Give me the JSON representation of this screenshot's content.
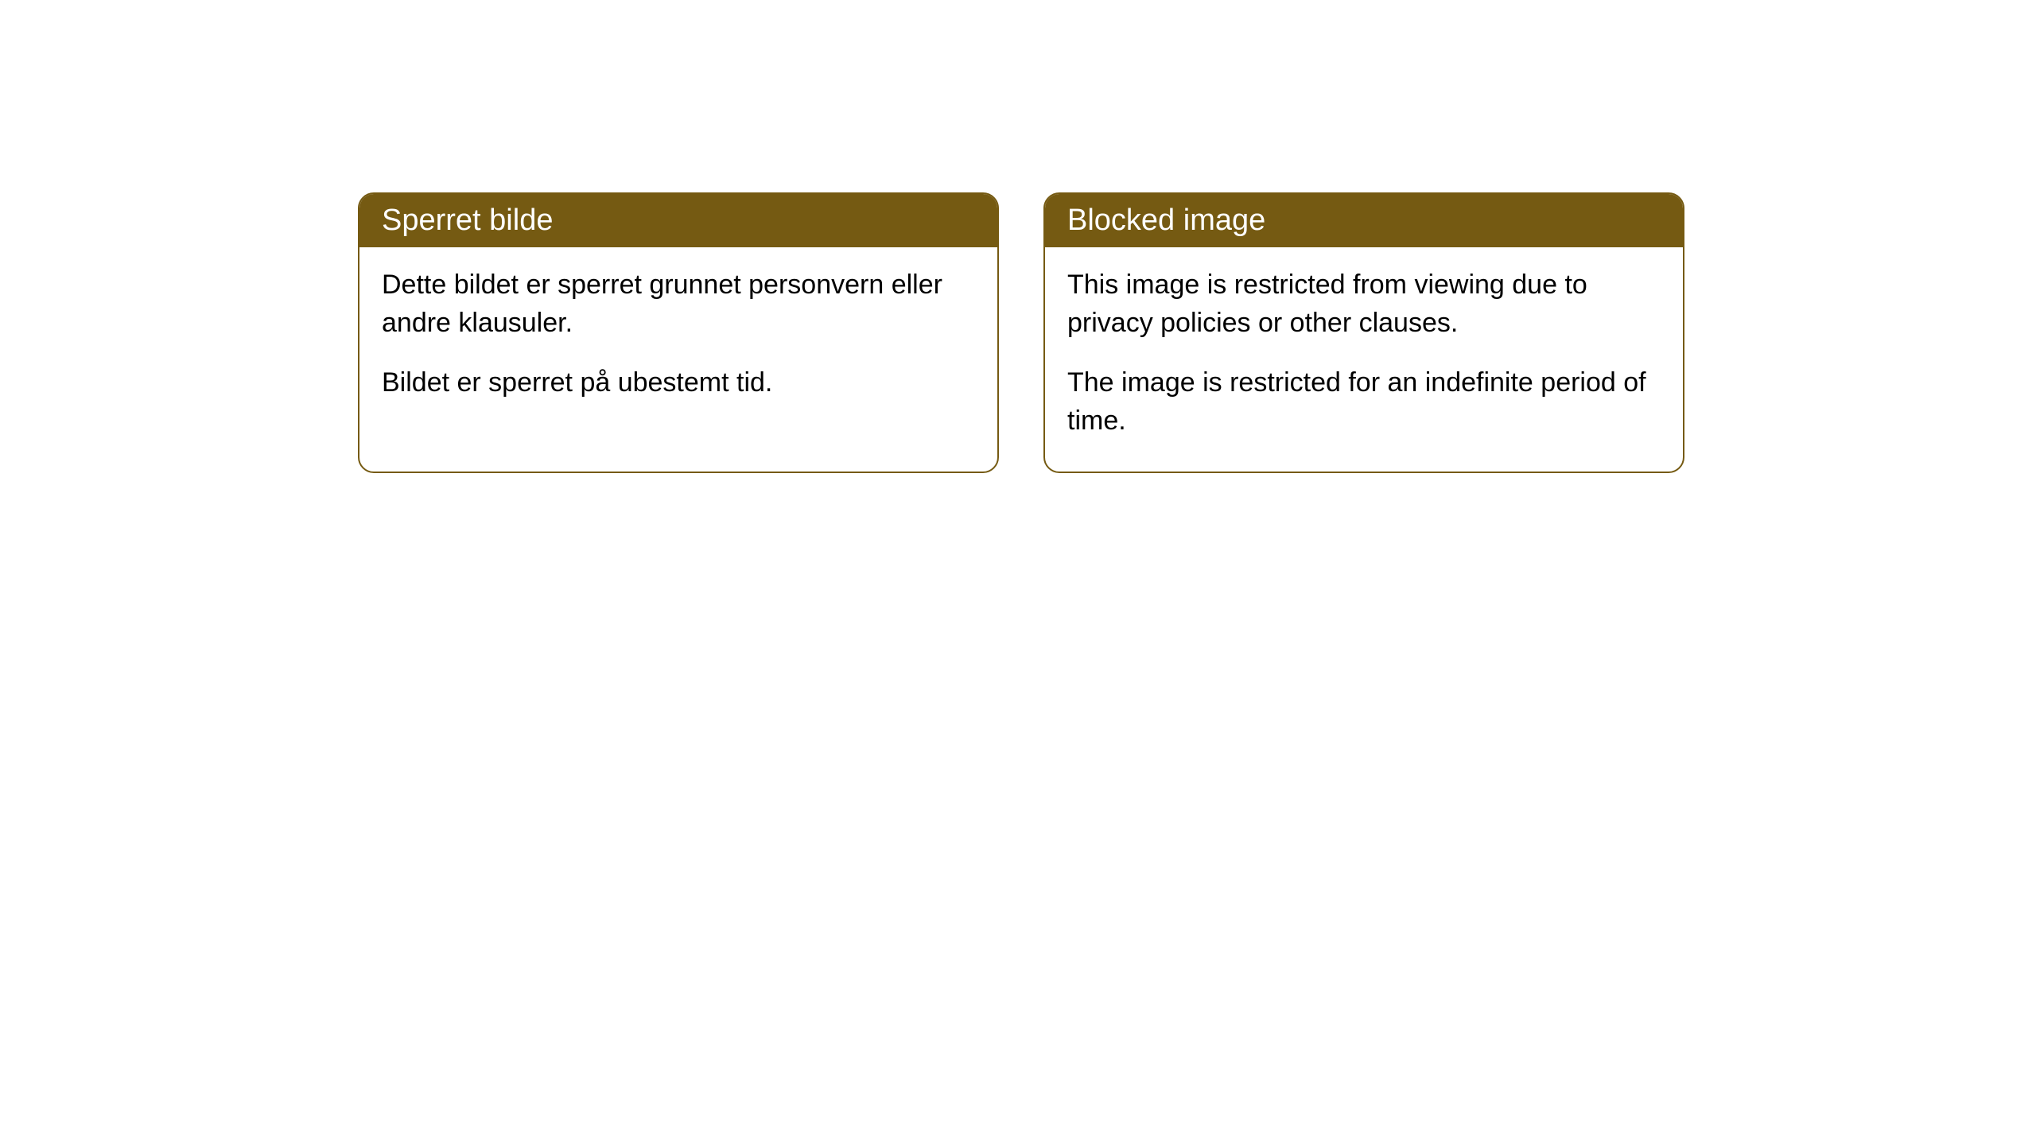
{
  "cards": [
    {
      "title": "Sperret bilde",
      "paragraph1": "Dette bildet er sperret grunnet personvern eller andre klausuler.",
      "paragraph2": "Bildet er sperret på ubestemt tid."
    },
    {
      "title": "Blocked image",
      "paragraph1": "This image is restricted from viewing due to privacy policies or other clauses.",
      "paragraph2": "The image is restricted for an indefinite period of time."
    }
  ],
  "styling": {
    "header_bg_color": "#755a12",
    "header_text_color": "#ffffff",
    "border_color": "#755a12",
    "body_bg_color": "#ffffff",
    "body_text_color": "#000000",
    "border_radius": 20,
    "header_fontsize": 38,
    "body_fontsize": 34
  }
}
